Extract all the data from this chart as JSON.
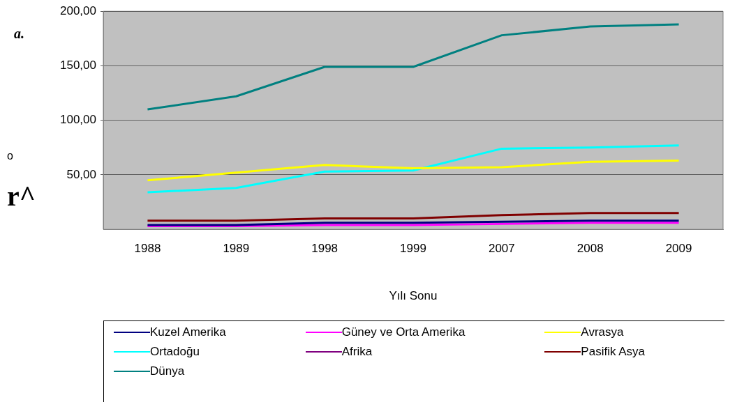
{
  "chart_data": {
    "type": "line",
    "xlabel": "Yılı Sonu",
    "annotations": [
      "a.",
      "o",
      "r^"
    ],
    "categories": [
      "1988",
      "1989",
      "1998",
      "1999",
      "2007",
      "2008",
      "2009"
    ],
    "series": [
      {
        "name": "Kuzel Amerika",
        "color": "#000080",
        "values": [
          4,
          4,
          6,
          6,
          7,
          8,
          8
        ]
      },
      {
        "name": "Güney ve Orta Amerika",
        "color": "#ff00ff",
        "values": [
          3,
          3,
          4,
          4,
          5,
          6,
          6
        ]
      },
      {
        "name": "Avrasya",
        "color": "#ffff00",
        "values": [
          45,
          52,
          59,
          56,
          57,
          62,
          63
        ]
      },
      {
        "name": "Ortadoğu",
        "color": "#00ffff",
        "values": [
          34,
          38,
          53,
          54,
          74,
          75,
          77
        ]
      },
      {
        "name": "Afrika",
        "color": "#800080",
        "values": [
          null,
          null,
          null,
          null,
          null,
          null,
          null
        ]
      },
      {
        "name": "Pasifik Asya",
        "color": "#800000",
        "values": [
          8,
          8,
          10,
          10,
          13,
          15,
          15
        ]
      },
      {
        "name": "Dünya",
        "color": "#008080",
        "values": [
          110,
          122,
          149,
          149,
          178,
          186,
          188
        ]
      }
    ],
    "ylim": [
      0,
      200
    ],
    "yticks": [
      {
        "value": 50,
        "label": "50,00"
      },
      {
        "value": 100,
        "label": "100,00"
      },
      {
        "value": 150,
        "label": "150,00"
      },
      {
        "value": 200,
        "label": "200,00"
      }
    ],
    "grid": "y",
    "legend": "bottom",
    "marker": "none",
    "line_style": "solid"
  }
}
